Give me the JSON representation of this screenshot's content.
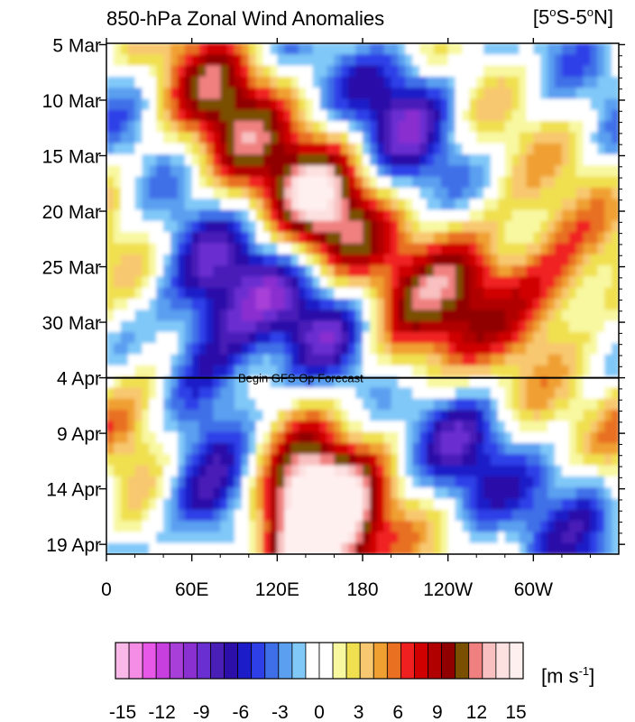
{
  "chart_data": {
    "type": "heatmap",
    "title": "850-hPa Zonal Wind Anomalies",
    "region_label": "[5°S-5°N]",
    "x_tick_labels": [
      "0",
      "60E",
      "120E",
      "180",
      "120W",
      "60W"
    ],
    "x_ticks_deg": [
      0,
      60,
      120,
      180,
      240,
      300
    ],
    "x_range_deg": [
      0,
      360
    ],
    "y_tick_labels": [
      "5 Mar",
      "10 Mar",
      "15 Mar",
      "20 Mar",
      "25 Mar",
      "30 Mar",
      "4 Apr",
      "9 Apr",
      "14 Apr",
      "19 Apr"
    ],
    "y_range": [
      "5 Mar",
      "20 Apr"
    ],
    "forecast_line": {
      "date": "4 Apr",
      "label": "Begin GFS Op Forecast"
    },
    "units": "m s-1",
    "colorbar": {
      "labels": [
        "-15",
        "-12",
        "-9",
        "-6",
        "-3",
        "0",
        "3",
        "6",
        "9",
        "12",
        "15"
      ],
      "colors": [
        "#f9b8e8",
        "#f58ce6",
        "#e858e8",
        "#c83fe0",
        "#a83fd8",
        "#8a2fd0",
        "#6a2fd0",
        "#4a1fb8",
        "#2c0fa8",
        "#1c1cc8",
        "#2f3fe8",
        "#3f6fe8",
        "#5a9ff0",
        "#80c8f8",
        "#ffffff",
        "#ffffff",
        "#f8f8a0",
        "#f0e050",
        "#f8c870",
        "#f0a030",
        "#e87020",
        "#f02020",
        "#d00000",
        "#b00000",
        "#900000",
        "#7a5000",
        "#f08080",
        "#f8c0c0",
        "#fde0e0",
        "#fff0f0"
      ]
    },
    "anomaly_features": [
      {
        "lon": 80,
        "day": 5,
        "value": 8
      },
      {
        "lon": 95,
        "day": 13,
        "value": 5
      },
      {
        "lon": 150,
        "day": 14,
        "value": 8
      },
      {
        "lon": 150,
        "day": 18,
        "value": 8
      },
      {
        "lon": 210,
        "day": 6,
        "value": -7
      },
      {
        "lon": 250,
        "day": 21,
        "value": 8
      },
      {
        "lon": 310,
        "day": 22,
        "value": 8
      },
      {
        "lon": 200,
        "day": 27,
        "value": 8
      },
      {
        "lon": 20,
        "day": 34,
        "value": 7
      },
      {
        "lon": 140,
        "day": 42,
        "value": 11
      },
      {
        "lon": 150,
        "day": 44,
        "value": 15
      },
      {
        "lon": 70,
        "day": 20,
        "value": -7
      },
      {
        "lon": 130,
        "day": 21,
        "value": -7
      },
      {
        "lon": 80,
        "day": 28,
        "value": -7
      },
      {
        "lon": 165,
        "day": 27,
        "value": -7
      },
      {
        "lon": 250,
        "day": 36,
        "value": -5
      },
      {
        "lon": 70,
        "day": 42,
        "value": -6
      },
      {
        "lon": 340,
        "day": 41,
        "value": -5
      }
    ]
  }
}
